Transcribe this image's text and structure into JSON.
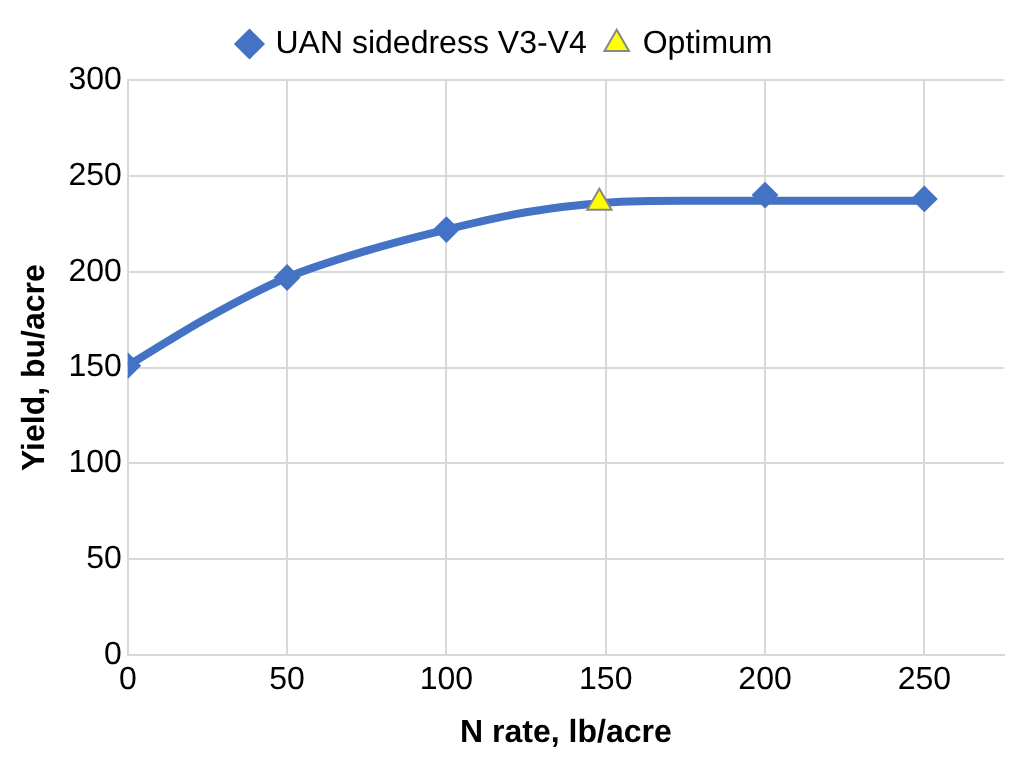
{
  "chart_data": {
    "type": "scatter",
    "xlabel": "N rate, lb/acre",
    "ylabel": "Yield, bu/acre",
    "xlim": [
      0,
      275
    ],
    "xticks": [
      0,
      50,
      100,
      150,
      200,
      250
    ],
    "ylim": [
      0,
      300
    ],
    "yticks": [
      0,
      50,
      100,
      150,
      200,
      250,
      300
    ],
    "grid": true,
    "legend": "top",
    "series": [
      {
        "type": "line",
        "color": "#4472c4",
        "marker": "none",
        "x": [
          0,
          25,
          50,
          75,
          100,
          125,
          150,
          175,
          200,
          225,
          250
        ],
        "values": [
          151,
          176,
          197,
          211,
          222,
          231,
          236,
          237,
          237,
          237,
          237
        ]
      },
      {
        "name": "UAN sidedress V3-V4",
        "color": "#4472c4",
        "marker": "diamond",
        "x": [
          0,
          50,
          100,
          150,
          200,
          250
        ],
        "values": [
          151,
          197,
          222,
          null,
          240,
          238
        ]
      },
      {
        "name": "Optimum",
        "color": "#ffff00",
        "marker": "triangle",
        "x": [
          148
        ],
        "values": [
          236
        ]
      }
    ]
  }
}
